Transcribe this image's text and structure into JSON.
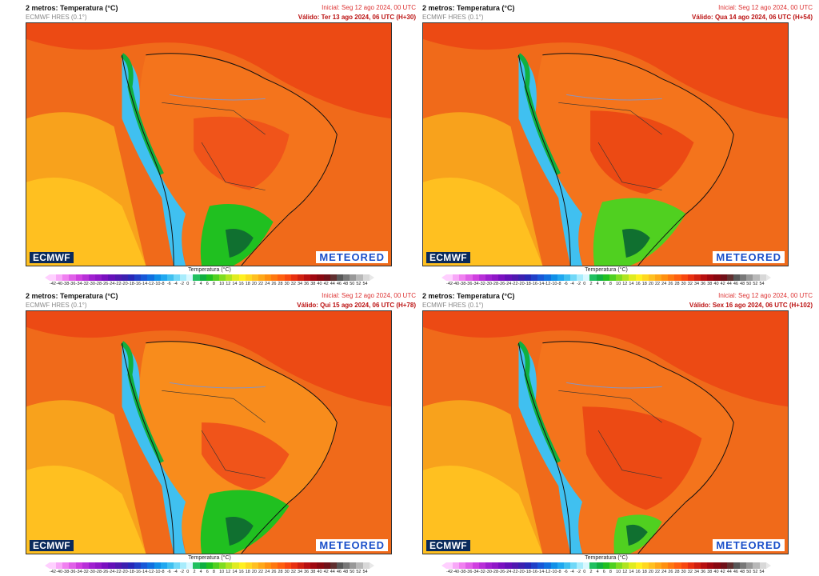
{
  "panels": [
    {
      "title": "2 metros: Temperatura (°C)",
      "model": "ECMWF HRES (0.1°)",
      "initial": "Inicial: Seg 12 ago 2024, 00 UTC",
      "valid": "Válido: Ter 13 ago 2024, 06 UTC (H+30)"
    },
    {
      "title": "2 metros: Temperatura (°C)",
      "model": "ECMWF HRES (0.1°)",
      "initial": "Inicial: Seg 12 ago 2024, 00 UTC",
      "valid": "Válido: Qua 14 ago 2024, 06 UTC (H+54)"
    },
    {
      "title": "2 metros: Temperatura (°C)",
      "model": "ECMWF HRES (0.1°)",
      "initial": "Inicial: Seg 12 ago 2024, 00 UTC",
      "valid": "Válido: Qui 15 ago 2024, 06 UTC (H+78)"
    },
    {
      "title": "2 metros: Temperatura (°C)",
      "model": "ECMWF HRES (0.1°)",
      "initial": "Inicial: Seg 12 ago 2024, 00 UTC",
      "valid": "Válido: Sex 16 ago 2024, 06 UTC (H+102)"
    }
  ],
  "logos": {
    "left": "ECMWF",
    "right": "METEORED"
  },
  "legend": {
    "title": "Temperatura (°C)",
    "ticks": [
      "-42",
      "-40",
      "-38",
      "-36",
      "-34",
      "-32",
      "-30",
      "-28",
      "-26",
      "-24",
      "-22",
      "-20",
      "-18",
      "-16",
      "-14",
      "-12",
      "-10",
      "-8",
      "-6",
      "-4",
      "-2",
      "0",
      "2",
      "4",
      "6",
      "8",
      "10",
      "12",
      "14",
      "16",
      "18",
      "20",
      "22",
      "24",
      "26",
      "28",
      "30",
      "32",
      "34",
      "36",
      "38",
      "40",
      "42",
      "44",
      "46",
      "48",
      "50",
      "52",
      "54"
    ],
    "colors": [
      "#ffd0ff",
      "#f8a8f8",
      "#f080f0",
      "#e060e8",
      "#d040e0",
      "#b830d8",
      "#a020d0",
      "#9018c8",
      "#7a10c0",
      "#6410b8",
      "#5018b0",
      "#3c20b0",
      "#2828b8",
      "#2040c8",
      "#1858d8",
      "#1070e0",
      "#1090e8",
      "#20a8f0",
      "#40c0f0",
      "#70d8f8",
      "#a8ecfc",
      "#d8f8ff",
      "#20c060",
      "#10b040",
      "#20c020",
      "#50d020",
      "#80dc20",
      "#b0e420",
      "#e0ec20",
      "#fff020",
      "#ffd820",
      "#ffc020",
      "#ffa818",
      "#ff9010",
      "#ff7810",
      "#ff6010",
      "#f84810",
      "#e83010",
      "#d02010",
      "#b81010",
      "#a00810",
      "#880810",
      "#701018",
      "#603030",
      "#585858",
      "#787878",
      "#989898",
      "#b8b8b8",
      "#d8d8d8"
    ]
  }
}
